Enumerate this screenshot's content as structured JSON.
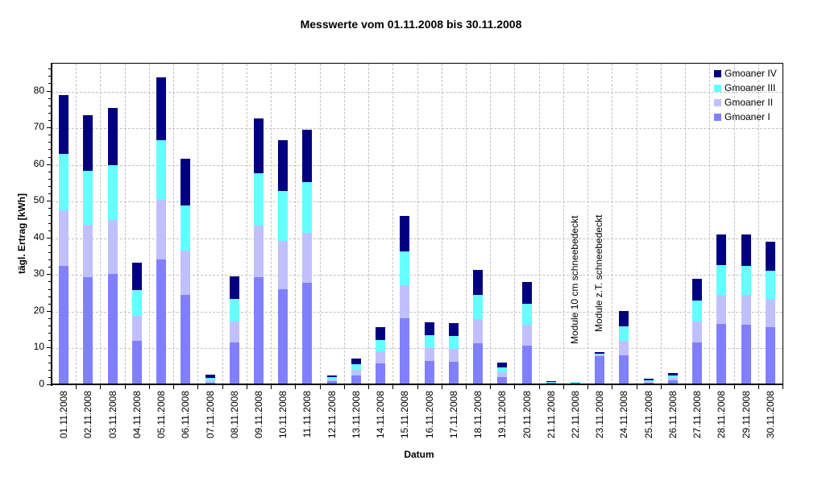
{
  "title": "Messwerte vom 01.11.2008 bis 30.11.2008",
  "chart_data": {
    "type": "bar",
    "stacked": true,
    "title": "Messwerte vom 01.11.2008 bis 30.11.2008",
    "xlabel": "Datum",
    "ylabel": "tägl. Ertrag [kWh]",
    "ylim": [
      0,
      88
    ],
    "yticks": [
      0,
      10,
      20,
      30,
      40,
      50,
      60,
      70,
      80
    ],
    "grid": true,
    "legend_position": "top-right",
    "categories": [
      "01.11.2008",
      "02.11.2008",
      "03.11.2008",
      "04.11.2008",
      "05.11.2008",
      "06.11.2008",
      "07.11.2008",
      "08.11.2008",
      "09.11.2008",
      "10.11.2008",
      "11.11.2008",
      "12.11.2008",
      "13.11.2008",
      "14.11.2008",
      "15.11.2008",
      "16.11.2008",
      "17.11.2008",
      "18.11.2008",
      "19.11.2008",
      "20.11.2008",
      "21.11.2008",
      "22.11.2008",
      "23.11.2008",
      "24.11.2008",
      "25.11.2008",
      "26.11.2008",
      "27.11.2008",
      "28.11.2008",
      "29.11.2008",
      "30.11.2008"
    ],
    "series": [
      {
        "name": "Gmoaner I",
        "color": "#8080ff",
        "values": [
          32.5,
          29.4,
          30.3,
          12.1,
          34.2,
          24.6,
          0.7,
          11.6,
          29.4,
          26.1,
          27.9,
          1.1,
          2.6,
          5.9,
          18.2,
          6.6,
          6.4,
          11.4,
          2.2,
          10.8,
          0.7,
          0.7,
          7.9,
          8.1,
          0.7,
          1.3,
          11.6,
          16.7,
          16.5,
          15.8
        ]
      },
      {
        "name": "Gmoaner II",
        "color": "#c0c0ff",
        "values": [
          15.1,
          14.3,
          14.7,
          6.8,
          16.3,
          12.1,
          0.6,
          5.7,
          14.1,
          13.2,
          13.6,
          0.4,
          1.6,
          3.3,
          9.0,
          3.5,
          3.5,
          6.6,
          1.3,
          5.7,
          0.1,
          0.0,
          0.4,
          4.0,
          0.4,
          0.7,
          5.7,
          7.9,
          8.1,
          7.7
        ]
      },
      {
        "name": "Gmoaner III",
        "color": "#66ffff",
        "values": [
          15.4,
          14.7,
          15.0,
          7.1,
          16.2,
          12.3,
          0.7,
          6.2,
          14.2,
          13.6,
          13.8,
          0.7,
          1.5,
          3.1,
          9.2,
          3.5,
          3.5,
          6.6,
          1.3,
          5.7,
          0.1,
          0.2,
          0.3,
          3.9,
          0.2,
          0.6,
          5.8,
          8.1,
          7.9,
          7.7
        ]
      },
      {
        "name": "Gmoaner IV",
        "color": "#000080",
        "values": [
          16.0,
          15.1,
          15.5,
          7.4,
          17.2,
          12.7,
          0.9,
          6.1,
          15.0,
          13.8,
          14.3,
          0.4,
          1.5,
          3.5,
          9.7,
          3.5,
          3.5,
          6.8,
          1.3,
          5.9,
          0.2,
          0.0,
          0.4,
          4.2,
          0.5,
          0.7,
          5.9,
          8.4,
          8.6,
          7.9
        ]
      }
    ],
    "annotations": [
      {
        "text": "Module 10 cm schneebedeckt",
        "at": "22.11.2008"
      },
      {
        "text": "Module z.T. schneebedeckt",
        "at": "23.11.2008"
      }
    ]
  },
  "legend": [
    {
      "label": "Gmoaner IV",
      "color": "#000080"
    },
    {
      "label": "Gmoaner III",
      "color": "#66ffff"
    },
    {
      "label": "Gmoaner II",
      "color": "#c0c0ff"
    },
    {
      "label": "Gmoaner I",
      "color": "#8080ff"
    }
  ]
}
